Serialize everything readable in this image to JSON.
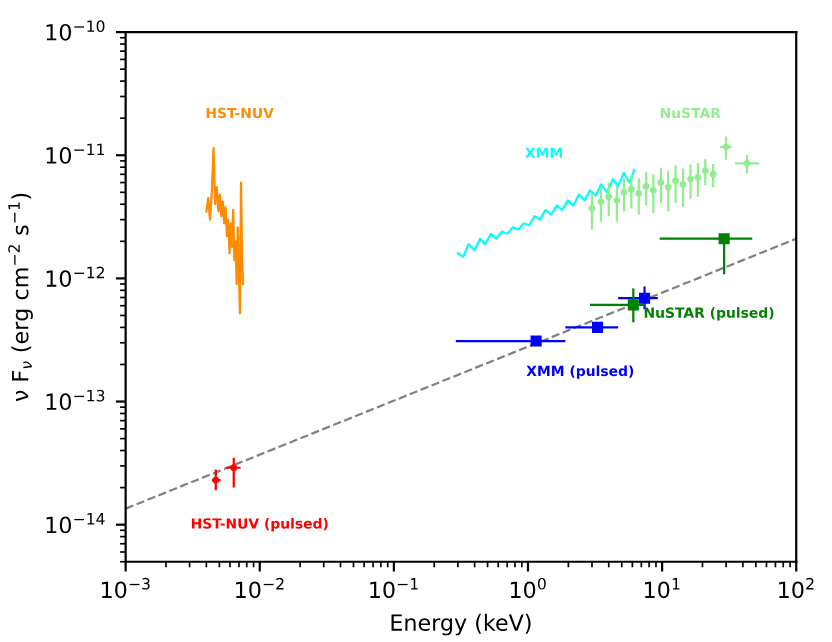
{
  "chart_data": {
    "type": "scatter",
    "xlabel": "Energy (keV)",
    "ylabel": "ν F$_{ν}$ (erg cm$^{−2}$ s$^{−1}$)",
    "log": "xy",
    "grid": false,
    "legend": false,
    "xlim": [
      0.001,
      100
    ],
    "ylim": [
      5e-15,
      1e-10
    ],
    "xticks": [
      {
        "value": 0.001,
        "label": "10$^{−3}$"
      },
      {
        "value": 0.01,
        "label": "10$^{−2}$"
      },
      {
        "value": 0.1,
        "label": "10$^{−1}$"
      },
      {
        "value": 1,
        "label": "10$^{0}$"
      },
      {
        "value": 10,
        "label": "10$^{1}$"
      },
      {
        "value": 100,
        "label": "10$^{2}$"
      }
    ],
    "yticks": [
      {
        "value": 1e-14,
        "label": "10$^{−14}$"
      },
      {
        "value": 1e-13,
        "label": "10$^{−13}$"
      },
      {
        "value": 1e-12,
        "label": "10$^{−12}$"
      },
      {
        "value": 1e-11,
        "label": "10$^{−11}$"
      },
      {
        "value": 1e-10,
        "label": "10$^{−10}$"
      }
    ],
    "series": [
      {
        "type": "line",
        "color": "#808080",
        "line_style": "dashed",
        "x": [
          0.001,
          100
        ],
        "values": [
          1.35e-14,
          2.1e-12
        ]
      },
      {
        "type": "line",
        "name": "HST-NUV",
        "color": "#ff8c00",
        "line_style": "solid",
        "x": [
          0.004,
          0.00413,
          0.00426,
          0.00439,
          0.00452,
          0.00465,
          0.00478,
          0.00491,
          0.00504,
          0.00517,
          0.0053,
          0.00543,
          0.00556,
          0.00569,
          0.00582,
          0.00595,
          0.00608,
          0.00621,
          0.00634,
          0.00647,
          0.0066,
          0.00673,
          0.00686,
          0.00699,
          0.00712,
          0.00725,
          0.00738,
          0.00751
        ],
        "values": [
          3.5e-12,
          4.5e-12,
          3e-12,
          5e-12,
          1.15e-11,
          4e-12,
          5.5e-12,
          3.5e-12,
          4.8e-12,
          3.2e-12,
          4.2e-12,
          2.8e-12,
          3.8e-12,
          2.2e-12,
          3e-12,
          1.6e-12,
          2.8e-12,
          1.8e-12,
          3.6e-12,
          1.4e-12,
          2e-12,
          9e-13,
          2.6e-12,
          1.2e-12,
          5.2e-13,
          6e-12,
          1.5e-12,
          9e-13
        ]
      },
      {
        "type": "line",
        "name": "XMM",
        "color": "#00ffff",
        "line_style": "solid",
        "x": [
          0.3,
          0.33,
          0.36,
          0.4,
          0.44,
          0.48,
          0.53,
          0.58,
          0.64,
          0.7,
          0.77,
          0.85,
          0.93,
          1.02,
          1.12,
          1.23,
          1.35,
          1.49,
          1.64,
          1.8,
          1.98,
          2.18,
          2.4,
          2.64,
          2.9,
          3.2,
          3.5,
          3.9,
          4.3,
          4.7,
          5.2,
          5.7,
          6.2
        ],
        "values": [
          1.6e-12,
          1.5e-12,
          1.9e-12,
          1.7e-12,
          2.1e-12,
          1.9e-12,
          2.3e-12,
          2.1e-12,
          2.4e-12,
          2.3e-12,
          2.6e-12,
          2.5e-12,
          2.8e-12,
          2.7e-12,
          3.2e-12,
          3e-12,
          3.6e-12,
          3.3e-12,
          3.9e-12,
          3.6e-12,
          4.3e-12,
          3.9e-12,
          4.8e-12,
          4.3e-12,
          5.2e-12,
          4.7e-12,
          5.8e-12,
          5e-12,
          6.4e-12,
          5.6e-12,
          7.2e-12,
          6e-12,
          7.6e-12
        ]
      },
      {
        "name": "NuSTAR",
        "color": "#90ee90",
        "marker": "circle",
        "x": [
          3.0,
          3.5,
          4.0,
          4.6,
          5.2,
          5.9,
          6.7,
          7.6,
          8.6,
          9.8,
          11.1,
          12.6,
          14.3,
          16.3,
          18.5,
          21,
          24,
          30,
          43
        ],
        "values": [
          3.7e-12,
          4.2e-12,
          4.6e-12,
          4.3e-12,
          5e-12,
          5.3e-12,
          4.9e-12,
          5.6e-12,
          5.2e-12,
          6e-12,
          5.5e-12,
          6.2e-12,
          5.8e-12,
          6.4e-12,
          6.6e-12,
          7.5e-12,
          7e-12,
          1.17e-11,
          8.6e-12
        ],
        "errors": [
          1.2e-12,
          1.3e-12,
          1.4e-12,
          1.4e-12,
          1.5e-12,
          1.6e-12,
          1.6e-12,
          1.7e-12,
          1.8e-12,
          1.9e-12,
          2e-12,
          2.1e-12,
          2e-12,
          2e-12,
          2e-12,
          1.8e-12,
          1.5e-12,
          2.5e-12,
          1.5e-12
        ],
        "xerrors": [
          null,
          null,
          null,
          null,
          null,
          null,
          null,
          null,
          null,
          null,
          null,
          null,
          null,
          null,
          null,
          null,
          null,
          [
            27,
            33
          ],
          [
            35,
            53
          ]
        ]
      },
      {
        "name": "XMM (pulsed)",
        "color": "#0000ff",
        "marker": "square",
        "x": [
          1.15,
          3.3,
          7.4
        ],
        "values": [
          3.1e-13,
          4e-13,
          6.9e-13
        ],
        "errors": [
          null,
          null,
          [
            5.6e-13,
            8.6e-13
          ]
        ],
        "xerrors": [
          [
            0.29,
            1.9
          ],
          [
            1.9,
            4.7
          ],
          [
            4.7,
            9.3
          ]
        ]
      },
      {
        "name": "NuSTAR (pulsed)",
        "color": "#008000",
        "marker": "square",
        "x": [
          6.1,
          29
        ],
        "values": [
          6.1e-13,
          2.1e-12
        ],
        "errors": [
          [
            4.4e-13,
            8.3e-13
          ],
          [
            1.08e-12,
            2.1e-12
          ]
        ],
        "xerrors": [
          [
            2.9,
            7.4
          ],
          [
            9.6,
            47
          ]
        ]
      },
      {
        "name": "HST-NUV (pulsed)",
        "color": "#ff0000",
        "marker": "circle",
        "x": [
          0.0047,
          0.0064
        ],
        "values": [
          2.3e-14,
          2.9e-14
        ],
        "errors": [
          [
            1.9e-14,
            2.8e-14
          ],
          [
            2e-14,
            3.5e-14
          ]
        ],
        "xerrors": [
          [
            0.0044,
            0.0051
          ],
          [
            0.0056,
            0.0072
          ]
        ]
      }
    ]
  }
}
